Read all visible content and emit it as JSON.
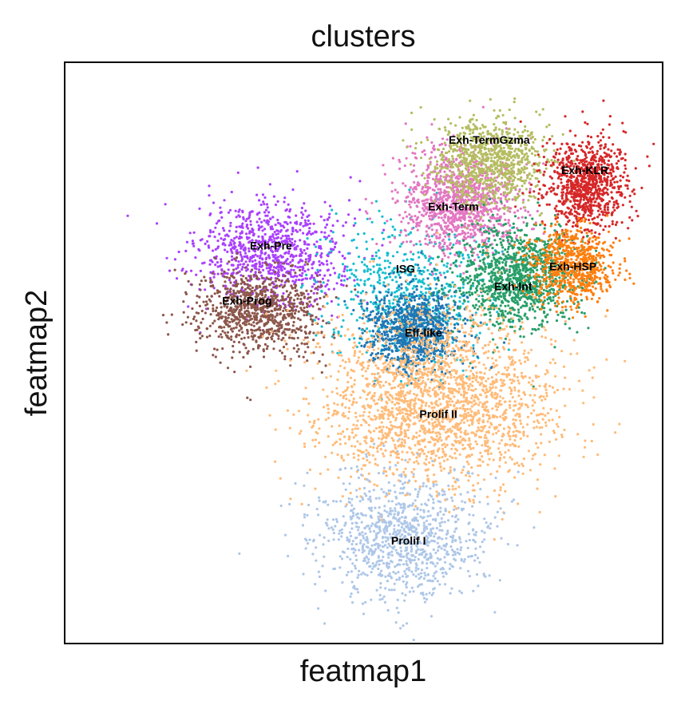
{
  "chart_data": {
    "type": "scatter",
    "title": "clusters",
    "xlabel": "featmap1",
    "ylabel": "featmap2",
    "xlim": [
      0,
      100
    ],
    "ylim": [
      0,
      100
    ],
    "grid": false,
    "legend": "on data",
    "series": [
      {
        "name": "Exh-Pre",
        "color": "#aa40fc",
        "center": [
          34.5,
          67.0
        ],
        "spread": [
          6.0,
          4.5
        ],
        "count": 900
      },
      {
        "name": "Exh-Prog",
        "color": "#8c564b",
        "center": [
          32.5,
          57.5
        ],
        "spread": [
          5.2,
          3.8
        ],
        "count": 900
      },
      {
        "name": "ISG",
        "color": "#17becf",
        "center": [
          57.5,
          60.5
        ],
        "spread": [
          7.0,
          6.0
        ],
        "count": 650
      },
      {
        "name": "Eff-like",
        "color": "#1f77b4",
        "center": [
          58.5,
          54.0
        ],
        "spread": [
          3.8,
          3.5
        ],
        "count": 1000
      },
      {
        "name": "Exh-Term",
        "color": "#e377c2",
        "center": [
          66.0,
          76.0
        ],
        "spread": [
          5.0,
          4.5
        ],
        "count": 1100
      },
      {
        "name": "Exh-TermGzma",
        "color": "#b5bd61",
        "center": [
          71.0,
          83.0
        ],
        "spread": [
          4.8,
          3.8
        ],
        "count": 900
      },
      {
        "name": "Exh-KLR",
        "color": "#d62728",
        "center": [
          87.0,
          79.0
        ],
        "spread": [
          3.5,
          4.0
        ],
        "count": 900
      },
      {
        "name": "Exh-Int",
        "color": "#279e68",
        "center": [
          75.5,
          63.0
        ],
        "spread": [
          4.8,
          4.2
        ],
        "count": 1100
      },
      {
        "name": "Exh-HSP",
        "color": "#ff7f0e",
        "center": [
          85.0,
          65.0
        ],
        "spread": [
          3.5,
          3.2
        ],
        "count": 700
      },
      {
        "name": "Prolif II",
        "color": "#ffbb78",
        "center": [
          62.0,
          42.0
        ],
        "spread": [
          10.0,
          7.5
        ],
        "count": 2200
      },
      {
        "name": "Prolif I",
        "color": "#aec7e8",
        "center": [
          56.5,
          18.5
        ],
        "spread": [
          7.0,
          5.5
        ],
        "count": 1000
      }
    ],
    "labels": [
      {
        "text": "Exh-TermGzma",
        "x": 71.0,
        "y": 86.0
      },
      {
        "text": "Exh-KLR",
        "x": 87.0,
        "y": 80.8
      },
      {
        "text": "Exh-Term",
        "x": 65.0,
        "y": 74.5
      },
      {
        "text": "Exh-Pre",
        "x": 34.5,
        "y": 67.8
      },
      {
        "text": "ISG",
        "x": 57.0,
        "y": 63.8
      },
      {
        "text": "Exh-HSP",
        "x": 85.0,
        "y": 64.2
      },
      {
        "text": "Exh-Int",
        "x": 75.0,
        "y": 60.8
      },
      {
        "text": "Exh-Prog",
        "x": 30.5,
        "y": 58.3
      },
      {
        "text": "Eff-like",
        "x": 60.0,
        "y": 52.8
      },
      {
        "text": "Prolif II",
        "x": 62.5,
        "y": 38.8
      },
      {
        "text": "Prolif I",
        "x": 57.5,
        "y": 17.0
      }
    ]
  }
}
